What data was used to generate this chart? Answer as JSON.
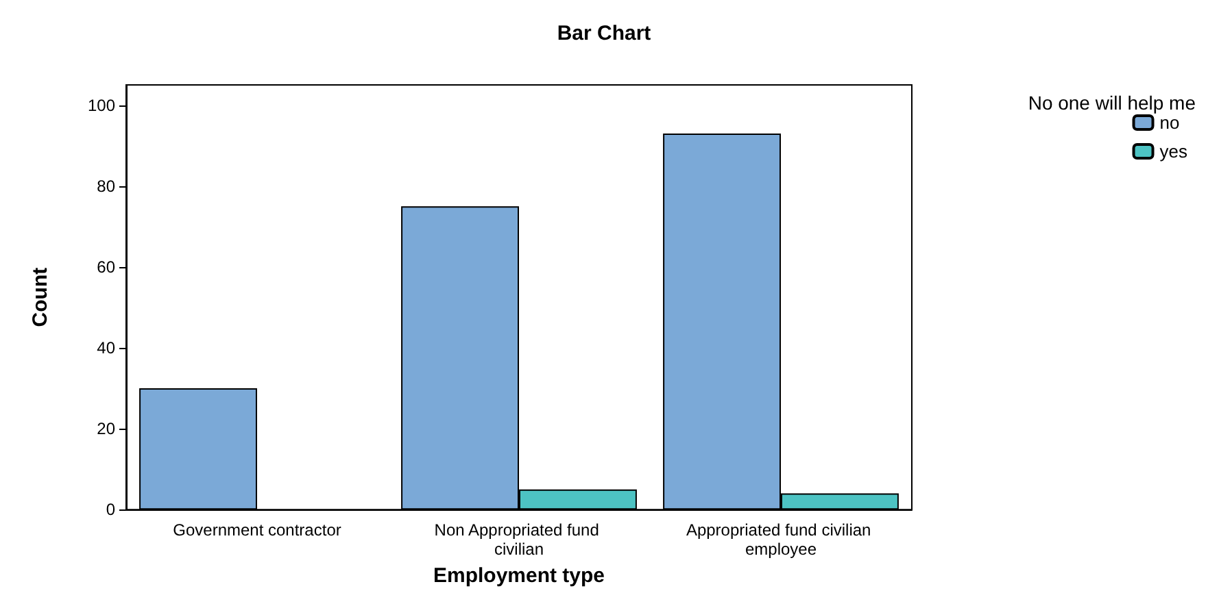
{
  "chart_data": {
    "type": "bar",
    "title": "Bar Chart",
    "xlabel": "Employment type",
    "ylabel": "Count",
    "legend_title": "No one will help me",
    "categories": [
      "Government contractor",
      "Non Appropriated fund civilian",
      "Appropriated fund civilian employee"
    ],
    "series": [
      {
        "name": "no",
        "color": "#7ba9d7",
        "values": [
          30,
          75,
          93
        ]
      },
      {
        "name": "yes",
        "color": "#4dc3c3",
        "values": [
          null,
          5,
          4
        ]
      }
    ],
    "ylim": [
      0,
      105
    ],
    "yticks": [
      0,
      20,
      40,
      60,
      80,
      100
    ],
    "grid": false,
    "legend": "top right"
  }
}
